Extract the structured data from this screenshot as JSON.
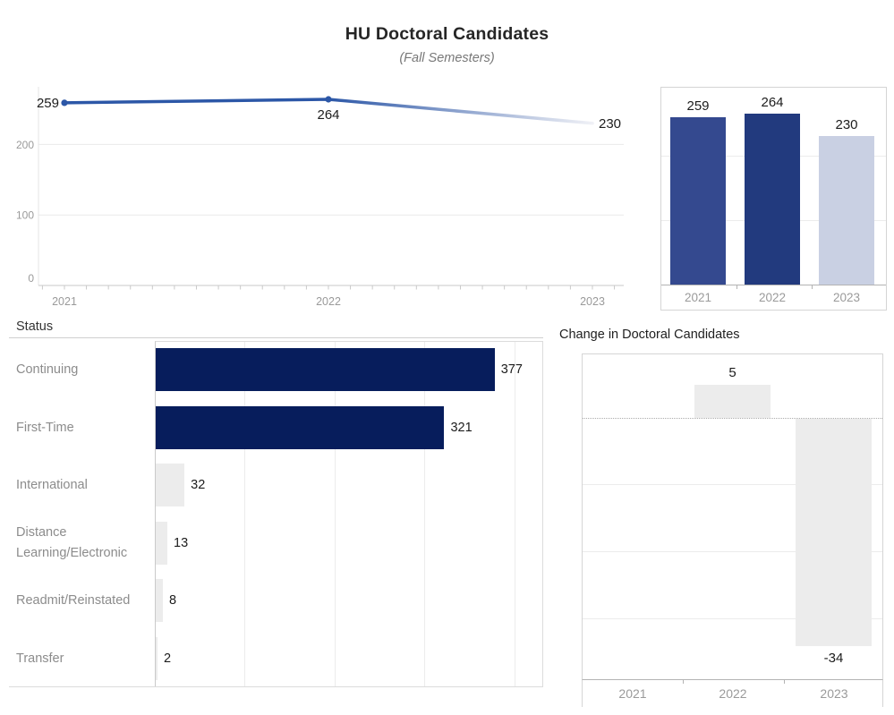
{
  "header": {
    "title": "HU Doctoral Candidates",
    "subtitle": "(Fall Semesters)"
  },
  "colors": {
    "line": "#2c57a7",
    "line_fade": "#f0f1f6",
    "navy_dark": "#071d5c",
    "light_gray_bar": "#ececec",
    "axis_text": "#9a9a9a",
    "category_text": "#8c8c8c",
    "value_text": "#1c1c1c"
  },
  "chart_data": [
    {
      "id": "doctoral-trend",
      "type": "line",
      "x": [
        "2021",
        "2022",
        "2023"
      ],
      "values": [
        259,
        264,
        230
      ],
      "yticks": [
        0,
        100,
        200
      ],
      "ylim": [
        0,
        282
      ],
      "grid": true,
      "line_color": "#2c57a7",
      "line_fades_to_light_at_end": true,
      "point_labels": [
        "259",
        "264",
        "230"
      ]
    },
    {
      "id": "doctoral-by-year",
      "type": "bar",
      "categories": [
        "2021",
        "2022",
        "2023"
      ],
      "values": [
        259,
        264,
        230
      ],
      "bar_colors": [
        "#34498f",
        "#223a7e",
        "#c9d0e3"
      ],
      "gridlines": [
        100,
        200
      ],
      "ylim": [
        0,
        306
      ]
    },
    {
      "id": "status-breakdown",
      "type": "bar",
      "orientation": "horizontal",
      "title": "Status",
      "categories": [
        "Continuing",
        "First-Time",
        "International",
        "Distance Learning/Electronic",
        "Readmit/Reinstated",
        "Transfer"
      ],
      "values": [
        377,
        321,
        32,
        13,
        8,
        2
      ],
      "bar_colors": [
        "#071d5c",
        "#071d5c",
        "#ececec",
        "#ececec",
        "#ececec",
        "#ececec"
      ],
      "gridlines": [
        100,
        200,
        300,
        400
      ],
      "xlim": [
        0,
        432
      ]
    },
    {
      "id": "change-in-candidates",
      "type": "bar",
      "title": "Change in Doctoral Candidates",
      "categories": [
        "2021",
        "2022",
        "2023"
      ],
      "values": [
        null,
        5,
        -34
      ],
      "bar_colors": [
        null,
        "#ececec",
        "#ececec"
      ],
      "gridlines": [
        -10,
        -20,
        -30
      ],
      "ylim": [
        10,
        -40
      ],
      "zero_line": "dotted"
    }
  ]
}
